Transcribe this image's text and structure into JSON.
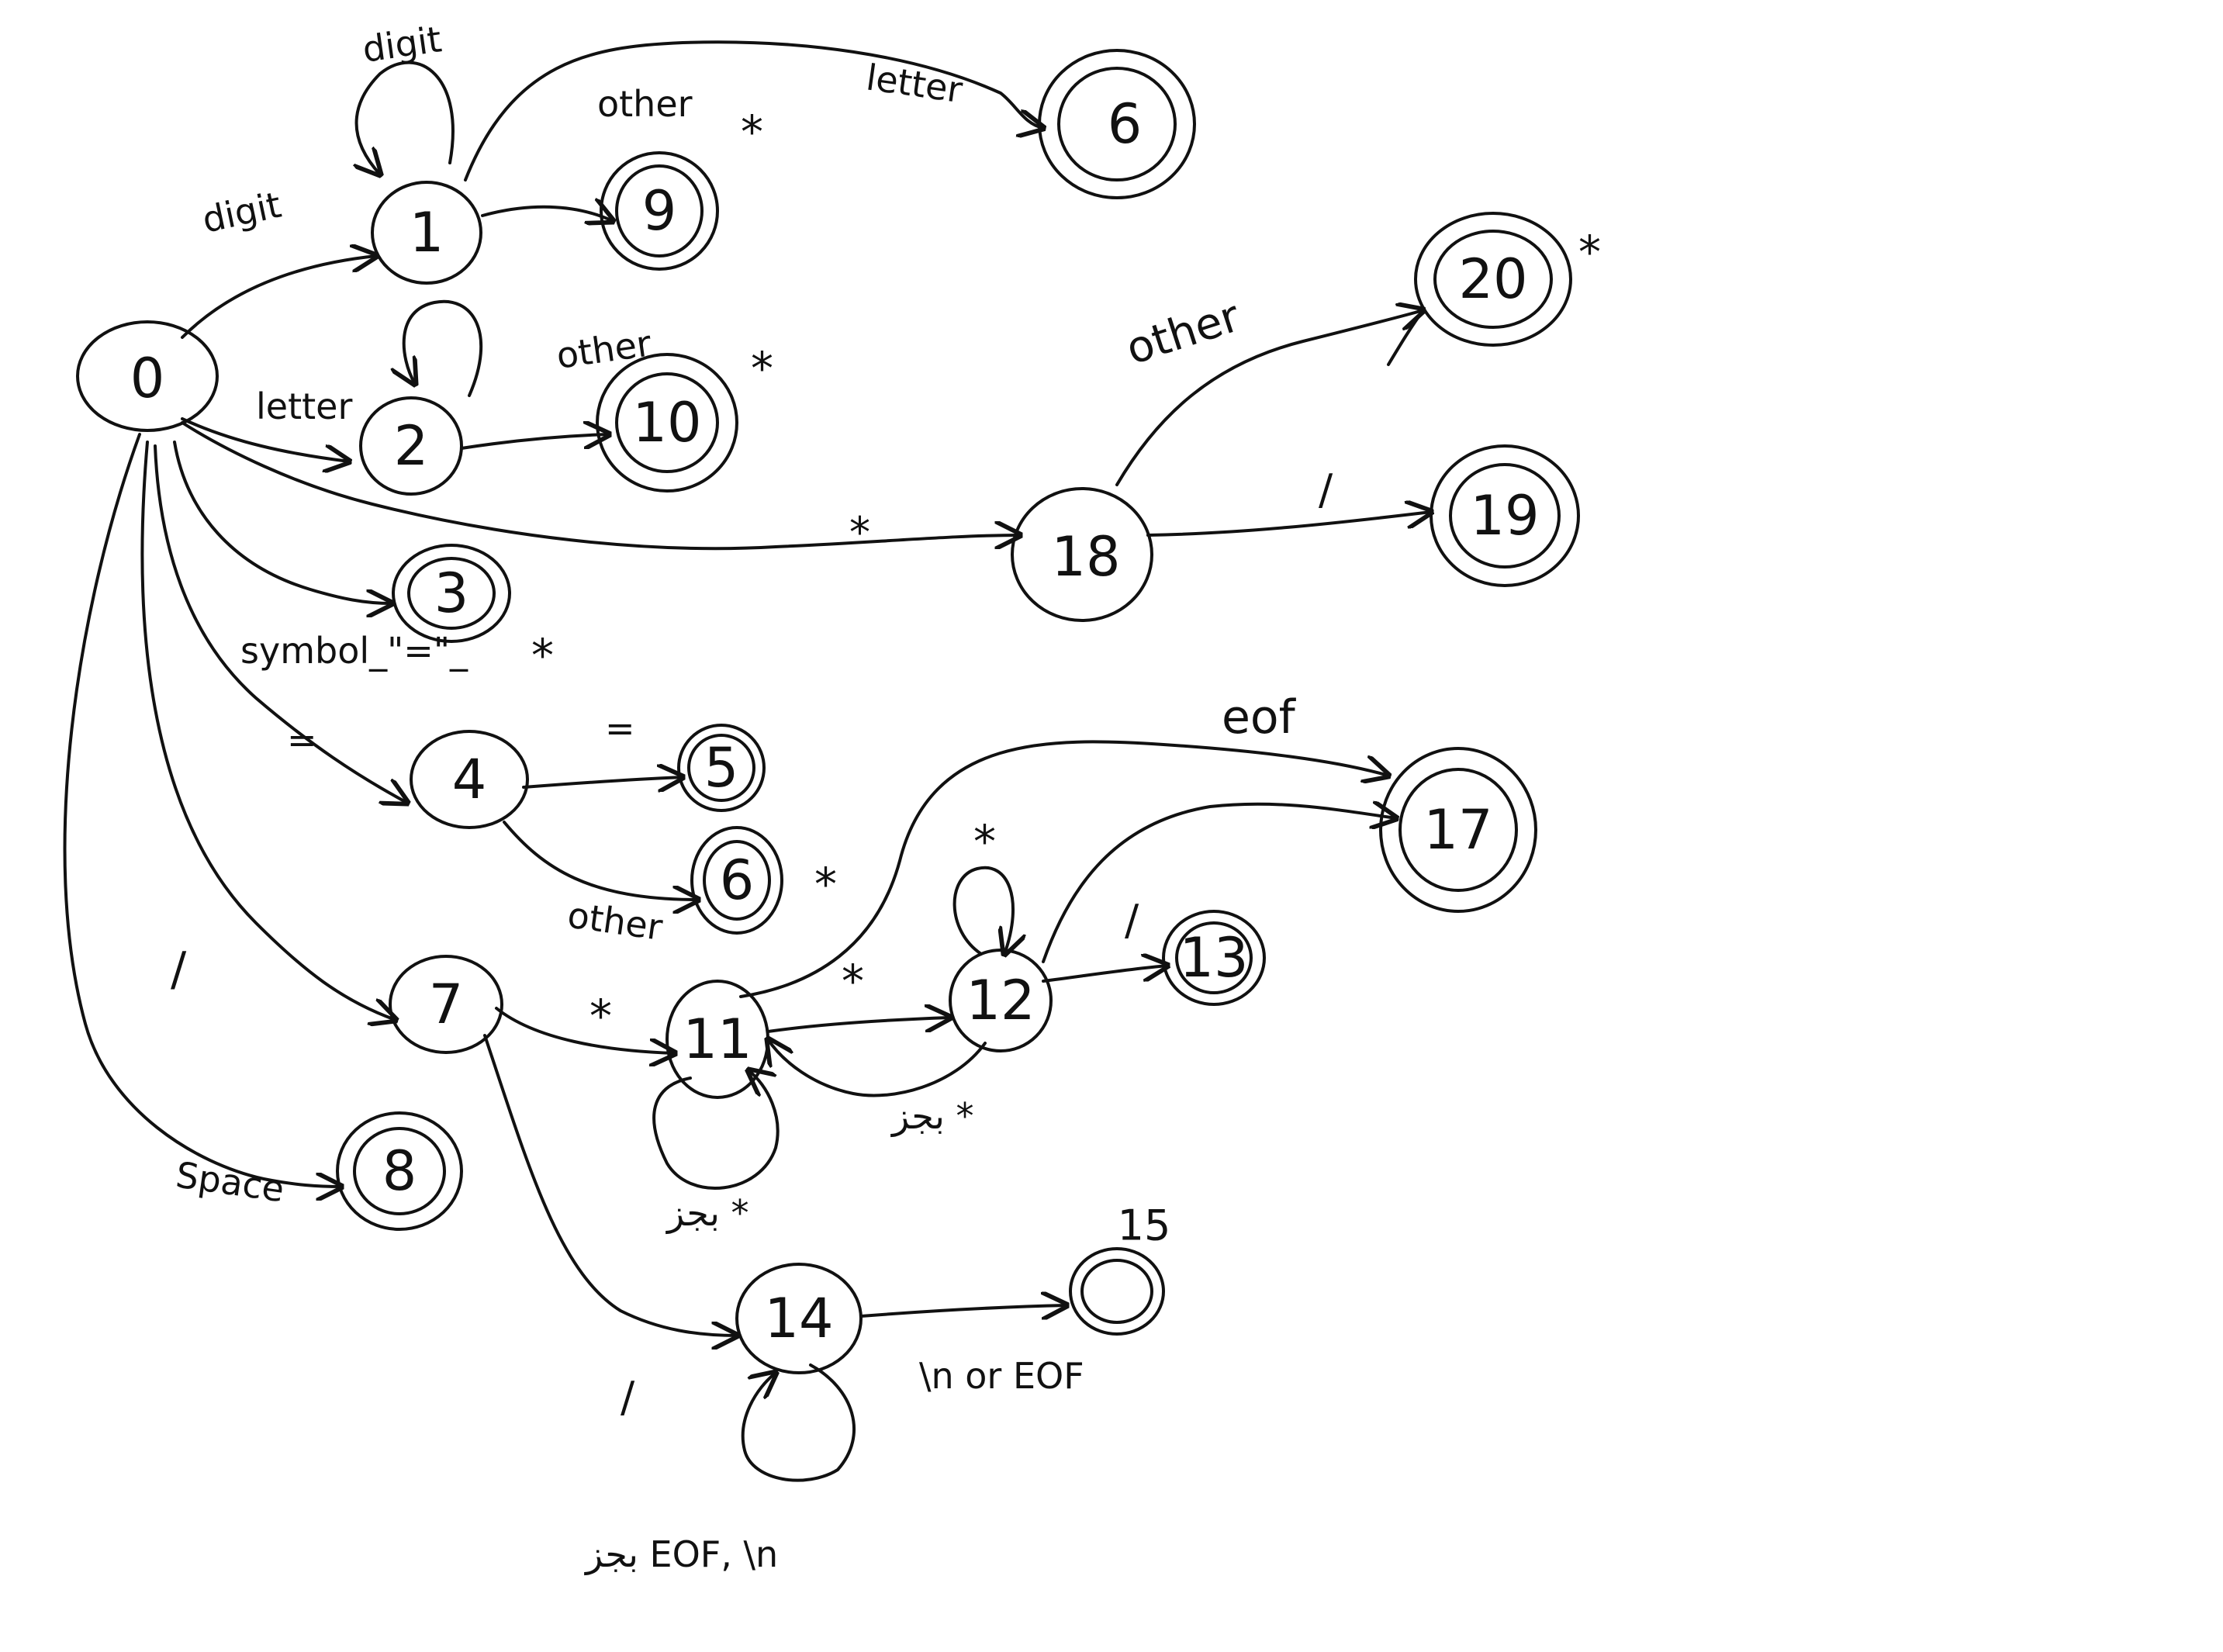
{
  "diagram": {
    "states": [
      {
        "id": "s0",
        "label": "0",
        "accepting": false
      },
      {
        "id": "s1",
        "label": "1",
        "accepting": false
      },
      {
        "id": "s2",
        "label": "2",
        "accepting": false
      },
      {
        "id": "s3",
        "label": "3",
        "accepting": true
      },
      {
        "id": "s4",
        "label": "4",
        "accepting": false
      },
      {
        "id": "s5",
        "label": "5",
        "accepting": true
      },
      {
        "id": "s6",
        "label": "6",
        "accepting": true
      },
      {
        "id": "s7",
        "label": "7",
        "accepting": false
      },
      {
        "id": "s8",
        "label": "8",
        "accepting": true
      },
      {
        "id": "s9",
        "label": "9",
        "accepting": true
      },
      {
        "id": "s10",
        "label": "10",
        "accepting": true
      },
      {
        "id": "s11",
        "label": "11",
        "accepting": false
      },
      {
        "id": "s12",
        "label": "12",
        "accepting": false
      },
      {
        "id": "s13",
        "label": "13",
        "accepting": true
      },
      {
        "id": "s14",
        "label": "14",
        "accepting": false
      },
      {
        "id": "s15",
        "label": "15",
        "accepting": true
      },
      {
        "id": "s16",
        "label": "6",
        "accepting": true
      },
      {
        "id": "s17",
        "label": "17",
        "accepting": true
      },
      {
        "id": "s18",
        "label": "18",
        "accepting": false
      },
      {
        "id": "s19",
        "label": "19",
        "accepting": true
      },
      {
        "id": "s20",
        "label": "20",
        "accepting": true
      }
    ],
    "edge_labels": {
      "e_0_1": "digit",
      "e_1_1": "digit",
      "e_1_9": "other",
      "e_1_16": "letter",
      "e_0_2": "letter",
      "e_2_10": "other",
      "e_0_3": "symbol_\"=\"_",
      "e_0_4": "=",
      "e_4_5": "=",
      "e_4_6": "other",
      "e_0_7": "/",
      "e_7_11": "*",
      "e_11_12": "*",
      "e_12_11": "بجز *",
      "e_11_11": "بجز *",
      "e_12_12": "*",
      "e_12_13": "/",
      "e_11_17": "eof",
      "e_7_14": "/",
      "e_14_15": "\\n or EOF",
      "e_14_14": "بجز EOF, \\n",
      "e_0_8": "Space",
      "e_0_18": "*",
      "e_18_19": "/",
      "e_18_20": "other"
    },
    "retract_mark": "*",
    "stroke_color": "#111111",
    "background": "#ffffff"
  }
}
